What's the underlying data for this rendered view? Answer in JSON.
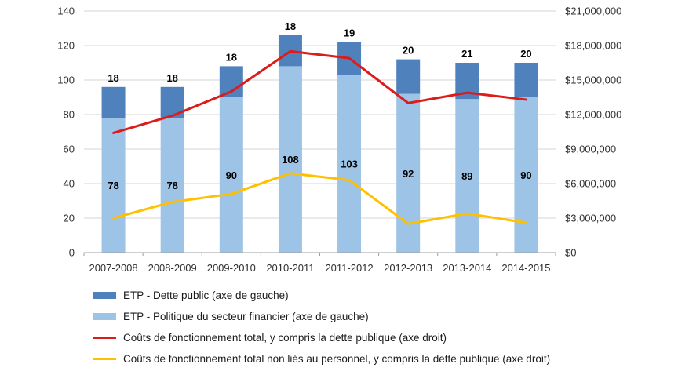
{
  "chart_data": {
    "type": "combo",
    "subtype": "stacked-bar + lines, dual axis",
    "categories": [
      "2007-2008",
      "2008-2009",
      "2009-2010",
      "2010-2011",
      "2011-2012",
      "2012-2013",
      "2013-2014",
      "2014-2015"
    ],
    "left_axis": {
      "min": 0,
      "max": 140,
      "step": 20,
      "ticks": [
        "0",
        "20",
        "40",
        "60",
        "80",
        "100",
        "120",
        "140"
      ]
    },
    "right_axis": {
      "min": 0,
      "max": 21000000,
      "step": 3000000,
      "ticks": [
        "$0",
        "$3,000,000",
        "$6,000,000",
        "$9,000,000",
        "$12,000,000",
        "$15,000,000",
        "$18,000,000",
        "$21,000,000"
      ]
    },
    "bar_series": [
      {
        "name": "ETP - Politique du secteur financier (axe de gauche)",
        "stack_position": "bottom",
        "axis": "left",
        "color": "#9DC3E6",
        "values": [
          78,
          78,
          90,
          108,
          103,
          92,
          89,
          90
        ]
      },
      {
        "name": "ETP - Dette public (axe de gauche)",
        "stack_position": "top",
        "axis": "left",
        "color": "#4F81BD",
        "values": [
          18,
          18,
          18,
          18,
          19,
          20,
          21,
          20
        ]
      }
    ],
    "line_series": [
      {
        "name": "Coûts de fonctionnement total, y compris la dette publique (axe droit)",
        "axis": "right",
        "color": "#DD1C1A",
        "values": [
          10400000,
          11900000,
          14000000,
          17500000,
          16900000,
          13000000,
          13900000,
          13300000
        ]
      },
      {
        "name": "Coûts de fonctionnement total non liés au personnel, y compris la dette publique (axe droit)",
        "axis": "right",
        "color": "#FFC000",
        "values": [
          3000000,
          4400000,
          5100000,
          6900000,
          6300000,
          2500000,
          3400000,
          2600000
        ]
      }
    ],
    "legend": [
      {
        "swatch": "bar",
        "color": "#4F81BD",
        "label": "ETP - Dette public (axe de gauche)"
      },
      {
        "swatch": "bar",
        "color": "#9DC3E6",
        "label": "ETP - Politique du secteur financier (axe de gauche)"
      },
      {
        "swatch": "line",
        "color": "#DD1C1A",
        "label": "Coûts de fonctionnement total, y compris la dette publique (axe droit)"
      },
      {
        "swatch": "line",
        "color": "#FFC000",
        "label": "Coûts de fonctionnement total non liés au personnel, y compris la dette publique (axe droit)"
      }
    ],
    "style": {
      "grid_color": "#D6D6D6",
      "axis_color": "#9E9E9E",
      "tick_color": "#2E2E2E",
      "data_label_color": "#000000",
      "grid": "horizontal only",
      "legend_position": "bottom-left"
    }
  }
}
